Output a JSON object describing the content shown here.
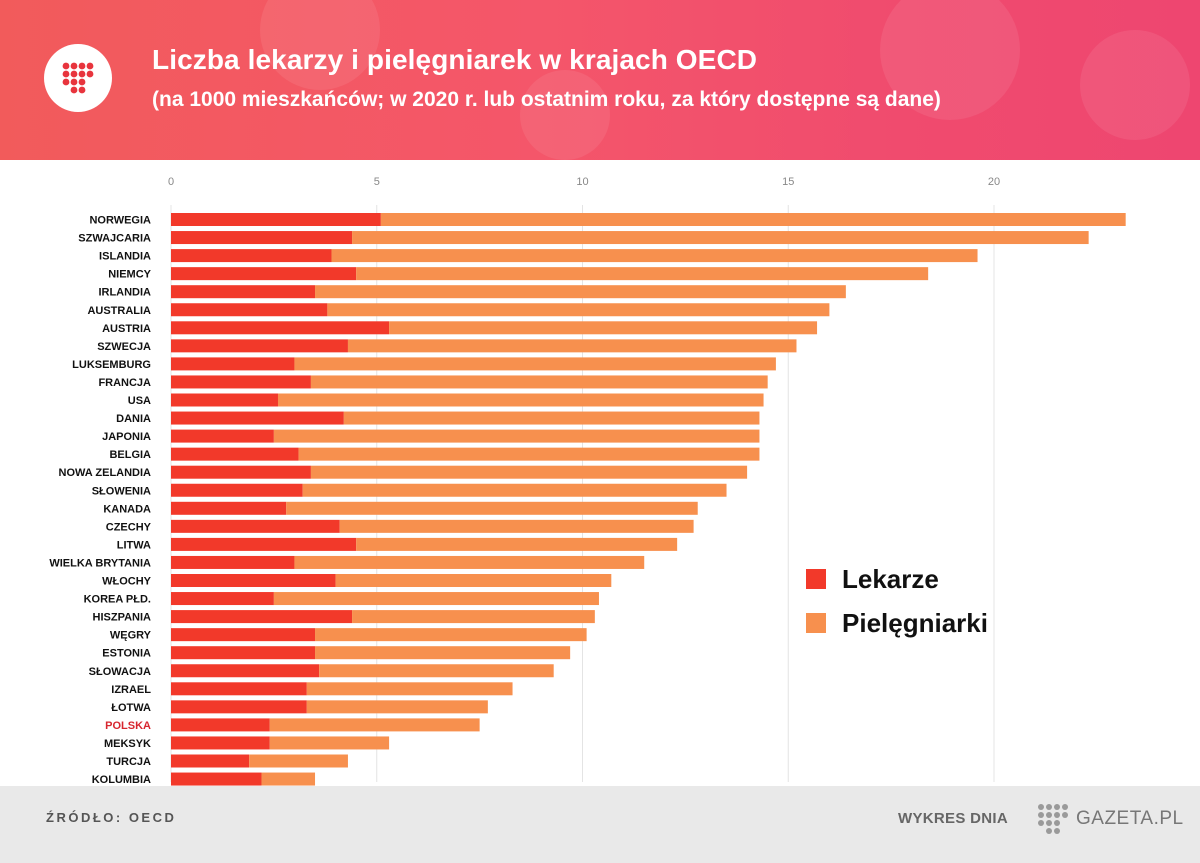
{
  "header": {
    "title": "Liczba lekarzy i pielęgniarek w krajach OECD",
    "subtitle": "(na 1000 mieszkańców; w 2020 r. lub ostatnim roku, za który dostępne są dane)"
  },
  "legend": {
    "doctors": "Lekarze",
    "nurses": "Pielęgniarki"
  },
  "footer": {
    "source": "ŹRÓDŁO: OECD",
    "chart_of_day": "WYKRES DNIA",
    "brand": "GAZETA.PL"
  },
  "colors": {
    "doctors": "#f2392a",
    "nurses": "#f7904e",
    "highlight_label": "#d7262f"
  },
  "chart_data": {
    "type": "bar",
    "orientation": "horizontal",
    "stacked": true,
    "xlim": [
      0,
      23.5
    ],
    "xticks": [
      0,
      5,
      10,
      15,
      20
    ],
    "grid": true,
    "legend_position": "right",
    "highlight": "POLSKA",
    "categories": [
      "NORWEGIA",
      "SZWAJCARIA",
      "ISLANDIA",
      "NIEMCY",
      "IRLANDIA",
      "AUSTRALIA",
      "AUSTRIA",
      "SZWECJA",
      "LUKSEMBURG",
      "FRANCJA",
      "USA",
      "DANIA",
      "JAPONIA",
      "BELGIA",
      "NOWA ZELANDIA",
      "SŁOWENIA",
      "KANADA",
      "CZECHY",
      "LITWA",
      "WIELKA BRYTANIA",
      "WŁOCHY",
      "KOREA PŁD.",
      "HISZPANIA",
      "WĘGRY",
      "ESTONIA",
      "SŁOWACJA",
      "IZRAEL",
      "ŁOTWA",
      "POLSKA",
      "MEKSYK",
      "TURCJA",
      "KOLUMBIA"
    ],
    "series": [
      {
        "name": "Lekarze",
        "values": [
          5.1,
          4.4,
          3.9,
          4.5,
          3.5,
          3.8,
          5.3,
          4.3,
          3.0,
          3.4,
          2.6,
          4.2,
          2.5,
          3.1,
          3.4,
          3.2,
          2.8,
          4.1,
          4.5,
          3.0,
          4.0,
          2.5,
          4.4,
          3.5,
          3.5,
          3.6,
          3.3,
          3.3,
          2.4,
          2.4,
          1.9,
          2.2
        ]
      },
      {
        "name": "Pielęgniarki",
        "values": [
          18.1,
          17.9,
          15.7,
          13.9,
          12.9,
          12.2,
          10.4,
          10.9,
          11.7,
          11.1,
          11.8,
          10.1,
          11.8,
          11.2,
          10.6,
          10.3,
          10.0,
          8.6,
          7.8,
          8.5,
          6.7,
          7.9,
          5.9,
          6.6,
          6.2,
          5.7,
          5.0,
          4.4,
          5.1,
          2.9,
          2.4,
          1.3
        ]
      }
    ]
  }
}
